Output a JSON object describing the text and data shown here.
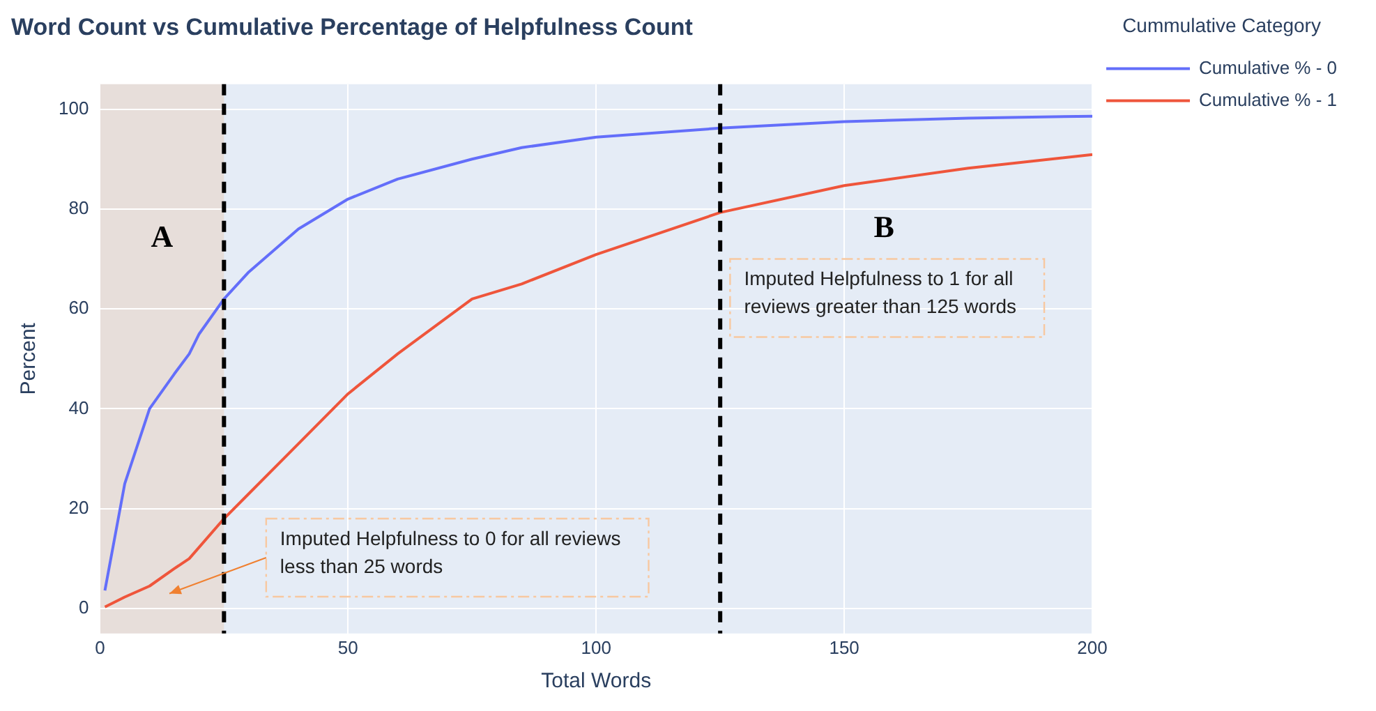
{
  "chart_data": {
    "type": "line",
    "title": "Word Count vs Cumulative Percentage of Helpfulness Count",
    "xlabel": "Total Words",
    "ylabel": "Percent",
    "legend_title": "Cummulative Category",
    "series": [
      {
        "name": "Cumulative % - 0",
        "color": "#636efa",
        "x": [
          1,
          5,
          10,
          15,
          18,
          20,
          25,
          30,
          40,
          50,
          60,
          75,
          85,
          100,
          125,
          150,
          175,
          200
        ],
        "values": [
          3.6,
          25,
          40,
          47,
          51,
          55,
          62,
          67.4,
          76,
          82,
          86,
          90,
          92.3,
          94.4,
          96.2,
          97.5,
          98.2,
          98.6
        ]
      },
      {
        "name": "Cumulative % - 1",
        "color": "#ef553b",
        "x": [
          1,
          5,
          10,
          15,
          18,
          25,
          30,
          40,
          50,
          60,
          75,
          85,
          100,
          125,
          150,
          175,
          200
        ],
        "values": [
          0.3,
          2.3,
          4.5,
          8,
          10,
          18,
          23,
          33,
          43,
          51,
          62,
          65,
          70.9,
          79.3,
          84.7,
          88.2,
          90.9
        ]
      }
    ],
    "xlim": [
      0,
      200
    ],
    "xticks": [
      0,
      50,
      100,
      150,
      200
    ],
    "ylim": [
      -5,
      105
    ],
    "yticks": [
      0,
      20,
      40,
      60,
      80,
      100
    ],
    "bands": [
      {
        "axis": "x",
        "from": 0,
        "to": 25,
        "label": "A",
        "color": "#f4a261"
      }
    ],
    "ref_lines": [
      {
        "axis": "x",
        "value": 25,
        "color": "#000000",
        "line_style": "dashed"
      },
      {
        "axis": "x",
        "value": 125,
        "color": "#000000",
        "line_style": "dashed"
      }
    ],
    "annotations": [
      "B",
      "Imputed Helpfulness to 0 for all reviews\nless than 25 words",
      "Imputed Helpfulness to 1 for all\nreviews greater than 125 words"
    ],
    "grid": true,
    "legend": "top right",
    "marker": "none",
    "line_style": "solid"
  }
}
